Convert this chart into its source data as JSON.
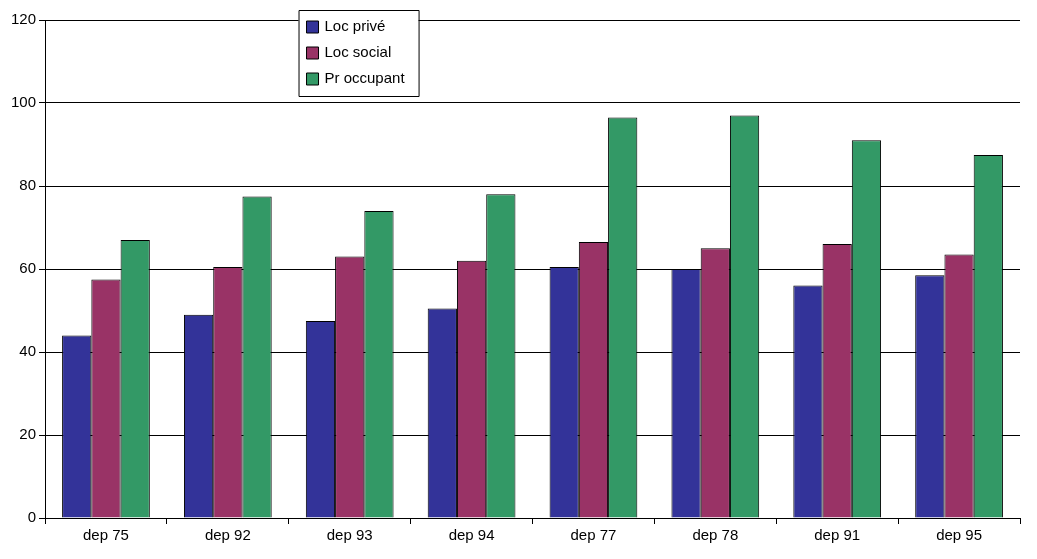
{
  "chart_data": {
    "type": "bar",
    "categories": [
      "dep 75",
      "dep 92",
      "dep 93",
      "dep 94",
      "dep 77",
      "dep 78",
      "dep 91",
      "dep 95"
    ],
    "series": [
      {
        "name": "Loc privé",
        "color": "#333399",
        "values": [
          44,
          49,
          47.5,
          50.5,
          60.5,
          60,
          56,
          58.5
        ]
      },
      {
        "name": "Loc social",
        "color": "#993366",
        "values": [
          57.5,
          60.5,
          63,
          62,
          66.5,
          65,
          66,
          63.5
        ]
      },
      {
        "name": "Pr occupant",
        "color": "#339966",
        "values": [
          67,
          77.5,
          74,
          78,
          96.5,
          97,
          91,
          87.5
        ]
      }
    ],
    "ylim": [
      0,
      120
    ],
    "yticks": [
      0,
      20,
      40,
      60,
      80,
      100,
      120
    ],
    "grid": "y",
    "legend": "top"
  }
}
